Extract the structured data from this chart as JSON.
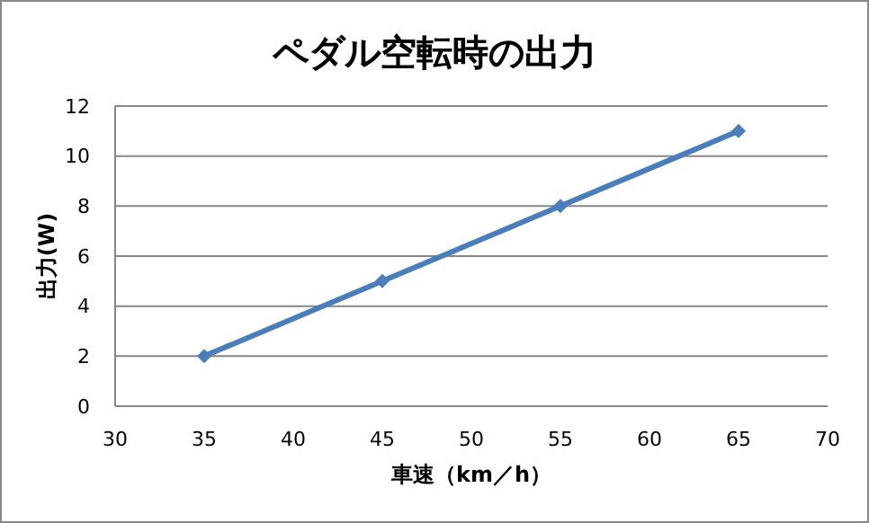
{
  "chart_data": {
    "type": "line",
    "title": "ペダル空転時の出力",
    "xlabel": "車速（km／h）",
    "ylabel": "出力(W)",
    "x": [
      35,
      45,
      55,
      65
    ],
    "series": [
      {
        "color": "#4a7ebb",
        "values": [
          2,
          5,
          8,
          11
        ]
      }
    ],
    "xlim": [
      30,
      70
    ],
    "xticks": [
      30,
      35,
      40,
      45,
      50,
      55,
      60,
      65,
      70
    ],
    "ylim": [
      0,
      12
    ],
    "yticks": [
      0,
      2,
      4,
      6,
      8,
      10,
      12
    ],
    "grid": "y",
    "marker": "diamond",
    "line_style": "solid"
  }
}
